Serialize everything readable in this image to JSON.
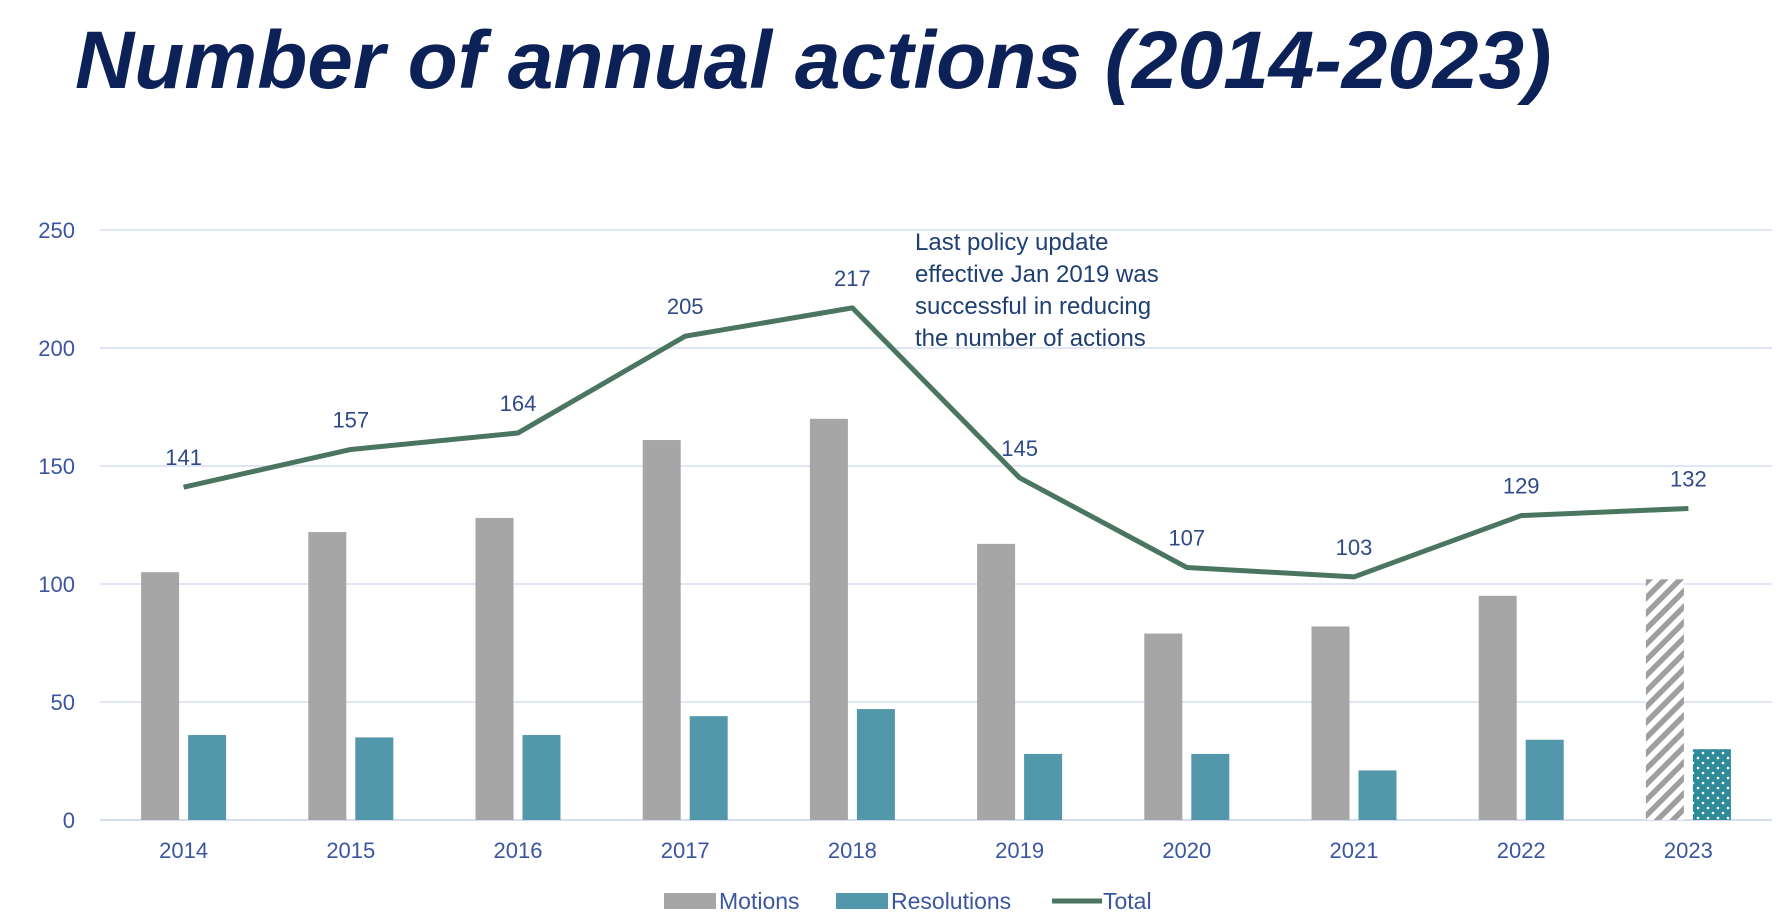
{
  "title": "Number of annual actions (2014-2023)",
  "annotation": [
    "Last policy update",
    "effective Jan 2019 was",
    "successful in reducing",
    "the number of actions"
  ],
  "chart_data": {
    "type": "bar",
    "title": "Number of annual actions (2014-2023)",
    "categories": [
      "2014",
      "2015",
      "2016",
      "2017",
      "2018",
      "2019",
      "2020",
      "2021",
      "2022",
      "2023"
    ],
    "ylim": [
      0,
      250
    ],
    "yticks": [
      "0",
      "50",
      "100",
      "150",
      "200",
      "250"
    ],
    "grid": true,
    "legend_position": "bottom",
    "series": [
      {
        "name": "Motions",
        "type": "bar",
        "color": "#a6a6a6",
        "values": [
          105,
          122,
          128,
          161,
          170,
          117,
          79,
          82,
          95,
          102
        ],
        "last_pattern": "hatched"
      },
      {
        "name": "Resolutions",
        "type": "bar",
        "color": "#5297aa",
        "values": [
          36,
          35,
          36,
          44,
          47,
          28,
          28,
          21,
          34,
          30
        ],
        "last_pattern": "dotted"
      },
      {
        "name": "Total",
        "type": "line",
        "color": "#4a7560",
        "values": [
          141,
          157,
          164,
          205,
          217,
          145,
          107,
          103,
          129,
          132
        ],
        "labels": [
          "141",
          "157",
          "164",
          "205",
          "217",
          "145",
          "107",
          "103",
          "129",
          "132"
        ]
      }
    ]
  }
}
